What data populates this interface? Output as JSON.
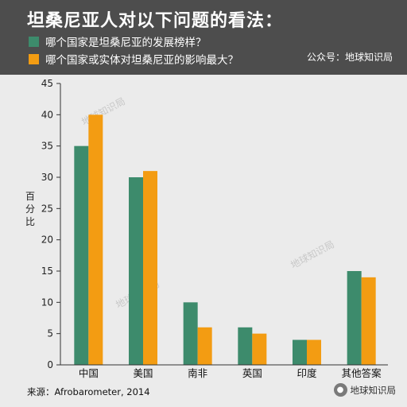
{
  "header": {
    "title": "坦桑尼亚人对以下问题的看法：",
    "account": "公众号：地球知识局"
  },
  "colors": {
    "series1": "#3d8b6c",
    "series2": "#f39c12",
    "header_bg": "#4d4d4d",
    "background": "#ebebeb"
  },
  "chart_data": {
    "type": "bar",
    "title": "坦桑尼亚人对以下问题的看法：",
    "ylabel": "百分比",
    "xlabel": "",
    "categories": [
      "中国",
      "美国",
      "南非",
      "英国",
      "印度",
      "其他答案"
    ],
    "series": [
      {
        "name": "哪个国家是坦桑尼亚的发展榜样？",
        "values": [
          35,
          30,
          10,
          6,
          4,
          15
        ]
      },
      {
        "name": "哪个国家或实体对坦桑尼亚的影响最大？",
        "values": [
          40,
          31,
          6,
          5,
          4,
          14
        ]
      }
    ],
    "ylim": [
      0,
      45
    ],
    "yticks": [
      0,
      5,
      10,
      15,
      20,
      25,
      30,
      35,
      40,
      45
    ],
    "grid": false,
    "legend_position": "top"
  },
  "watermark": {
    "text": "地球知识局",
    "icon": "wechat-icon"
  },
  "source": "来源：Afrobarometer, 2014",
  "badge_text": "地球知识局"
}
